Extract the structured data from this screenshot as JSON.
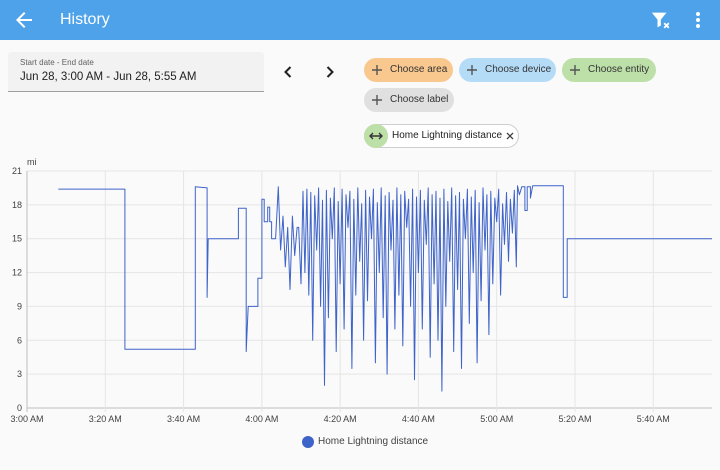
{
  "header": {
    "title": "History",
    "back_icon": "arrow-left-icon",
    "filter_icon": "filter-remove-icon",
    "menu_icon": "dots-vertical-icon"
  },
  "date_picker": {
    "label": "Start date - End date",
    "value": "Jun 28, 3:00 AM - Jun 28, 5:55 AM"
  },
  "targets": {
    "area_label": "Choose area",
    "device_label": "Choose device",
    "entity_label": "Choose entity",
    "label_label": "Choose label",
    "selected_entity": "Home Lightning distance"
  },
  "colors": {
    "header": "#4ea2ea",
    "area_chip": "#f9c88f",
    "device_chip": "#b5dcf7",
    "entity_chip": "#bde0a9",
    "label_chip": "#e0e0e0",
    "series": "#3e63c9"
  },
  "chart_data": {
    "type": "line",
    "ylabel": "mi",
    "ylim": [
      0,
      21
    ],
    "yticks": [
      "0",
      "3",
      "6",
      "9",
      "12",
      "15",
      "18",
      "21"
    ],
    "xticks": [
      "3:00 AM",
      "3:20 AM",
      "3:40 AM",
      "4:00 AM",
      "4:20 AM",
      "4:40 AM",
      "5:00 AM",
      "5:20 AM",
      "5:40 AM"
    ],
    "xlim_minutes": [
      0,
      175
    ],
    "grid": true,
    "legend_position": "bottom",
    "series": [
      {
        "name": "Home Lightning distance",
        "color": "#3e63c9",
        "points": [
          [
            8,
            19.4
          ],
          [
            25,
            19.4
          ],
          [
            25,
            5.2
          ],
          [
            43,
            5.2
          ],
          [
            43,
            19.6
          ],
          [
            46,
            19.5
          ],
          [
            46,
            9.8
          ],
          [
            46.3,
            15
          ],
          [
            54,
            15
          ],
          [
            54,
            17.7
          ],
          [
            56,
            17.7
          ],
          [
            56,
            5
          ],
          [
            56.5,
            9
          ],
          [
            59,
            9
          ],
          [
            59,
            11.5
          ],
          [
            60,
            11.5
          ],
          [
            60,
            18.5
          ],
          [
            60.6,
            18.5
          ],
          [
            60.6,
            16.5
          ],
          [
            61.5,
            16.5
          ],
          [
            61.5,
            17.8
          ],
          [
            62,
            17.8
          ],
          [
            62,
            16.5
          ],
          [
            62.5,
            16.5
          ],
          [
            62.5,
            15
          ],
          [
            63.5,
            15
          ],
          [
            64.2,
            19.6
          ],
          [
            64.8,
            14
          ],
          [
            65.4,
            17
          ],
          [
            66,
            12.5
          ],
          [
            66.6,
            16
          ],
          [
            67.2,
            10.5
          ],
          [
            67.8,
            17
          ],
          [
            68.4,
            13.5
          ],
          [
            69,
            16
          ],
          [
            69.4,
            16
          ],
          [
            70,
            11
          ],
          [
            70.5,
            19.2
          ],
          [
            71,
            12
          ],
          [
            71.5,
            19.4
          ],
          [
            72,
            10
          ],
          [
            72.5,
            19.1
          ],
          [
            73,
            6
          ],
          [
            73.5,
            18.8
          ],
          [
            74,
            14
          ],
          [
            74.5,
            19.5
          ],
          [
            75,
            9
          ],
          [
            75.5,
            18.4
          ],
          [
            76,
            2
          ],
          [
            76.5,
            19.3
          ],
          [
            77,
            8
          ],
          [
            77.5,
            18.6
          ],
          [
            78,
            15
          ],
          [
            78.5,
            19.5
          ],
          [
            79,
            5
          ],
          [
            79.5,
            18.3
          ],
          [
            80,
            11
          ],
          [
            80.5,
            19.4
          ],
          [
            81,
            7
          ],
          [
            81.5,
            18.9
          ],
          [
            82,
            16
          ],
          [
            82.5,
            19.2
          ],
          [
            83,
            3.5
          ],
          [
            83.5,
            18.5
          ],
          [
            84,
            10
          ],
          [
            84.5,
            19.5
          ],
          [
            85,
            13
          ],
          [
            85.5,
            18.1
          ],
          [
            86,
            6
          ],
          [
            86.5,
            19.3
          ],
          [
            87,
            9.5
          ],
          [
            87.5,
            18.7
          ],
          [
            88,
            15
          ],
          [
            88.5,
            19.4
          ],
          [
            89,
            4
          ],
          [
            89.5,
            18.2
          ],
          [
            90,
            12
          ],
          [
            90.5,
            19.5
          ],
          [
            91,
            8
          ],
          [
            91.5,
            18.8
          ],
          [
            92,
            3
          ],
          [
            92.5,
            19.1
          ],
          [
            93,
            14
          ],
          [
            93.5,
            18.4
          ],
          [
            94,
            7
          ],
          [
            94.5,
            19.5
          ],
          [
            95,
            10
          ],
          [
            95.5,
            18.9
          ],
          [
            96,
            5.5
          ],
          [
            96.5,
            19.2
          ],
          [
            97,
            16
          ],
          [
            97.5,
            18.5
          ],
          [
            98,
            9
          ],
          [
            98.5,
            19.4
          ],
          [
            99,
            2.5
          ],
          [
            99.5,
            18.7
          ],
          [
            100,
            12
          ],
          [
            100.5,
            19.3
          ],
          [
            101,
            7
          ],
          [
            101.5,
            18.4
          ],
          [
            102,
            14.5
          ],
          [
            102.5,
            19.5
          ],
          [
            103,
            4.5
          ],
          [
            103.5,
            18.9
          ],
          [
            104,
            11
          ],
          [
            104.5,
            19.2
          ],
          [
            105,
            6
          ],
          [
            105.5,
            18.6
          ],
          [
            106,
            1.5
          ],
          [
            106.5,
            19.4
          ],
          [
            107,
            9
          ],
          [
            107.5,
            18.3
          ],
          [
            108,
            13
          ],
          [
            108.5,
            19.5
          ],
          [
            109,
            5
          ],
          [
            109.5,
            18.8
          ],
          [
            110,
            10.5
          ],
          [
            110.5,
            19.1
          ],
          [
            111,
            3.5
          ],
          [
            111.5,
            18.5
          ],
          [
            112,
            15
          ],
          [
            112.5,
            19.4
          ],
          [
            113,
            7.5
          ],
          [
            113.5,
            18.7
          ],
          [
            114,
            12
          ],
          [
            114.5,
            19.3
          ],
          [
            115,
            4
          ],
          [
            115.5,
            18.2
          ],
          [
            116,
            9.5
          ],
          [
            116.5,
            19.5
          ],
          [
            117,
            14
          ],
          [
            117.5,
            18.9
          ],
          [
            118,
            6.5
          ],
          [
            118.5,
            19.2
          ],
          [
            119,
            11
          ],
          [
            119.5,
            18.6
          ],
          [
            120,
            16.5
          ],
          [
            120.5,
            19.4
          ],
          [
            121,
            10
          ],
          [
            121.5,
            18.1
          ],
          [
            122,
            14.5
          ],
          [
            122.5,
            19.1
          ],
          [
            123,
            13
          ],
          [
            123.5,
            18.5
          ],
          [
            124,
            15.5
          ],
          [
            124.5,
            19.3
          ],
          [
            125,
            12.5
          ],
          [
            125.3,
            19.7
          ],
          [
            125.8,
            18.9
          ],
          [
            126.4,
            19.6
          ],
          [
            127.2,
            19.6
          ],
          [
            127.2,
            17.5
          ],
          [
            127.8,
            17.5
          ],
          [
            127.8,
            19.6
          ],
          [
            128.6,
            19.6
          ],
          [
            128.6,
            18.6
          ],
          [
            129.2,
            19.7
          ],
          [
            137,
            19.7
          ],
          [
            137,
            9.8
          ],
          [
            138,
            9.8
          ],
          [
            138,
            15
          ],
          [
            175,
            15
          ]
        ]
      }
    ]
  },
  "legend": {
    "label": "Home Lightning distance"
  }
}
